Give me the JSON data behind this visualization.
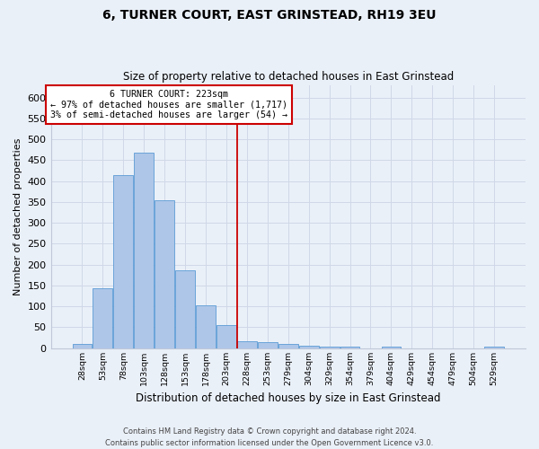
{
  "title": "6, TURNER COURT, EAST GRINSTEAD, RH19 3EU",
  "subtitle": "Size of property relative to detached houses in East Grinstead",
  "xlabel": "Distribution of detached houses by size in East Grinstead",
  "ylabel": "Number of detached properties",
  "footnote1": "Contains HM Land Registry data © Crown copyright and database right 2024.",
  "footnote2": "Contains public sector information licensed under the Open Government Licence v3.0.",
  "bar_labels": [
    "28sqm",
    "53sqm",
    "78sqm",
    "103sqm",
    "128sqm",
    "153sqm",
    "178sqm",
    "203sqm",
    "228sqm",
    "253sqm",
    "279sqm",
    "304sqm",
    "329sqm",
    "354sqm",
    "379sqm",
    "404sqm",
    "429sqm",
    "454sqm",
    "479sqm",
    "504sqm",
    "529sqm"
  ],
  "bar_values": [
    9,
    143,
    415,
    468,
    353,
    185,
    103,
    54,
    16,
    13,
    10,
    5,
    3,
    3,
    0,
    3,
    0,
    0,
    0,
    0,
    3
  ],
  "bar_color": "#aec6e8",
  "bar_edge_color": "#5b9bd5",
  "grid_color": "#d0d8e8",
  "background_color": "#eaf0f8",
  "property_line_label": "6 TURNER COURT: 223sqm",
  "annotation_line1": "← 97% of detached houses are smaller (1,717)",
  "annotation_line2": "3% of semi-detached houses are larger (54) →",
  "annotation_box_color": "#ffffff",
  "annotation_box_edge": "#cc0000",
  "vline_color": "#cc0000",
  "ylim": [
    0,
    630
  ],
  "yticks": [
    0,
    50,
    100,
    150,
    200,
    250,
    300,
    350,
    400,
    450,
    500,
    550,
    600
  ]
}
